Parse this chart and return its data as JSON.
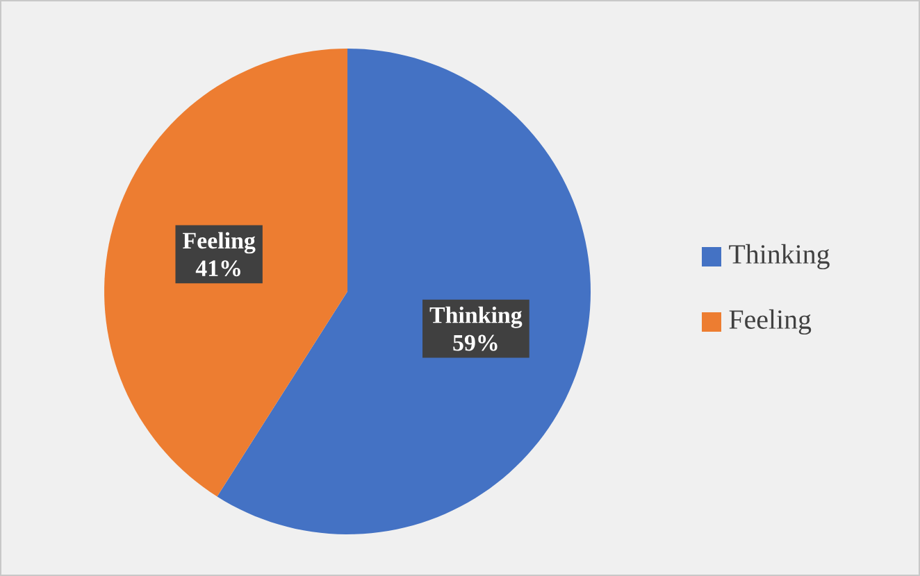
{
  "chart_data": {
    "type": "pie",
    "categories": [
      "Thinking",
      "Feeling"
    ],
    "values": [
      59,
      41
    ],
    "colors": [
      "#4472c4",
      "#ed7d31"
    ],
    "value_labels": [
      "59%",
      "41%"
    ],
    "legend": "right"
  }
}
